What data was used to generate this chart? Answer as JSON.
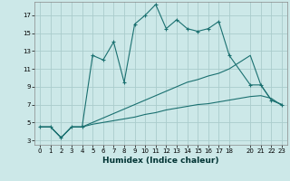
{
  "xlabel": "Humidex (Indice chaleur)",
  "bg_color": "#cce8e8",
  "grid_color": "#aacccc",
  "line_color": "#1a7070",
  "xlim": [
    -0.5,
    23.5
  ],
  "ylim": [
    2.5,
    18.5
  ],
  "xticks": [
    0,
    1,
    2,
    3,
    4,
    5,
    6,
    7,
    8,
    9,
    10,
    11,
    12,
    13,
    14,
    15,
    16,
    17,
    18,
    20,
    21,
    22,
    23
  ],
  "yticks": [
    3,
    5,
    7,
    9,
    11,
    13,
    15,
    17
  ],
  "curve1_x": [
    0,
    1,
    2,
    3,
    4,
    5,
    6,
    7,
    8,
    9,
    10,
    11,
    12,
    13,
    14,
    15,
    16,
    17,
    18,
    20,
    21,
    22,
    23
  ],
  "curve1_y": [
    4.5,
    4.5,
    3.3,
    4.5,
    4.5,
    12.5,
    12.0,
    14.0,
    9.5,
    16.0,
    17.0,
    18.2,
    15.5,
    16.5,
    15.5,
    15.2,
    15.5,
    16.3,
    12.5,
    9.2,
    9.2,
    7.5,
    7.0
  ],
  "curve2_x": [
    0,
    1,
    2,
    3,
    4,
    5,
    6,
    7,
    8,
    9,
    10,
    11,
    12,
    13,
    14,
    15,
    16,
    17,
    18,
    20,
    21,
    22,
    23
  ],
  "curve2_y": [
    4.5,
    4.5,
    3.3,
    4.5,
    4.5,
    5.0,
    5.5,
    6.0,
    6.5,
    7.0,
    7.5,
    8.0,
    8.5,
    9.0,
    9.5,
    9.8,
    10.2,
    10.5,
    11.0,
    12.5,
    9.2,
    7.5,
    7.0
  ],
  "curve3_x": [
    0,
    1,
    2,
    3,
    4,
    5,
    6,
    7,
    8,
    9,
    10,
    11,
    12,
    13,
    14,
    15,
    16,
    17,
    18,
    20,
    21,
    22,
    23
  ],
  "curve3_y": [
    4.5,
    4.5,
    3.3,
    4.5,
    4.5,
    4.8,
    5.0,
    5.2,
    5.4,
    5.6,
    5.9,
    6.1,
    6.4,
    6.6,
    6.8,
    7.0,
    7.1,
    7.3,
    7.5,
    7.9,
    8.0,
    7.7,
    6.9
  ]
}
